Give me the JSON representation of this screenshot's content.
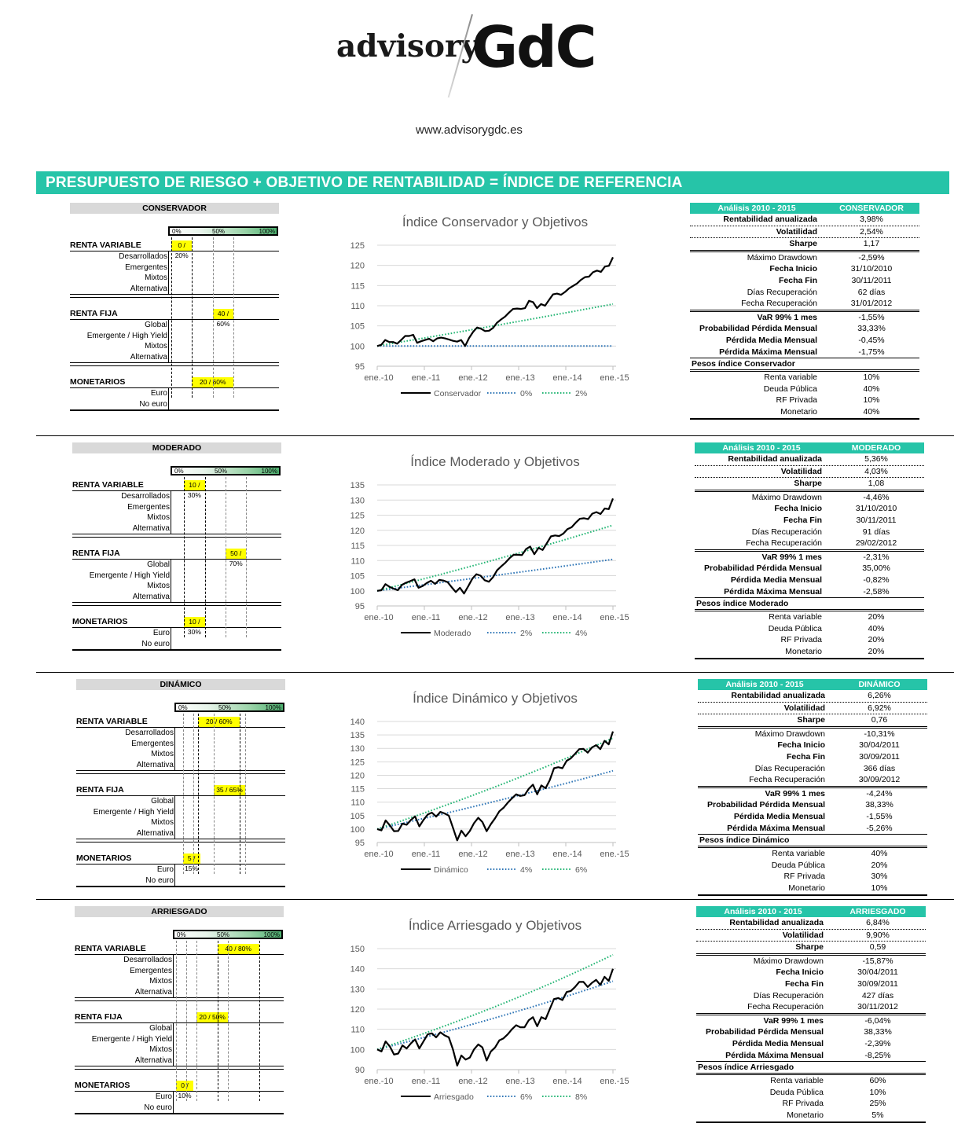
{
  "header": {
    "logo_left": "advisory",
    "logo_right": "GdC",
    "url": "www.advisorygdc.es",
    "banner": "PRESUPUESTO DE RIESGO + OBJETIVO DE RENTABILIDAD = ÍNDICE DE REFERENCIA"
  },
  "colors": {
    "accent": "#26c4a8",
    "highlight": "#ffff00",
    "header_gray": "#d9d9d9",
    "index_line": "#000000",
    "target_low": "#2e75b6",
    "target_high": "#22b573"
  },
  "scale_labels": [
    "0%",
    "50%",
    "100%"
  ],
  "alloc_labels": {
    "renta_variable": "RENTA VARIABLE",
    "rv_items": [
      "Desarrollados",
      "Emergentes",
      "Mixtos",
      "Alternativa"
    ],
    "renta_fija": "RENTA FIJA",
    "rf_items": [
      "Global",
      "Emergente / High Yield",
      "Mixtos",
      "Alternativa"
    ],
    "monetarios": "MONETARIOS",
    "mon_items": [
      "Euro",
      "No euro"
    ]
  },
  "stats_labels": {
    "header_left": "Análisis 2010 - 2015",
    "rentabilidad": "Rentabilidad anualizada",
    "volatilidad": "Volatilidad",
    "sharpe": "Sharpe",
    "max_dd": "Máximo Drawdown",
    "fecha_inicio": "Fecha Inicio",
    "fecha_fin": "Fecha Fin",
    "dias_rec": "Días Recuperación",
    "fecha_rec": "Fecha Recuperación",
    "var": "VaR 99% 1 mes",
    "prob_perdida": "Probabilidad Pérdida Mensual",
    "perdida_media": "Pérdida Media Mensual",
    "perdida_max": "Pérdida Máxima Mensual",
    "w_rv": "Renta variable",
    "w_deuda": "Deuda Pública",
    "w_rfp": "RF Privada",
    "w_mon": "Monetario"
  },
  "profiles": [
    {
      "name": "CONSERVADOR",
      "alloc": {
        "renta_variable": {
          "label": "0 / 20%",
          "min": 0,
          "max": 20
        },
        "renta_fija": {
          "label": "40 / 60%",
          "min": 40,
          "max": 60
        },
        "monetarios": {
          "label": "20 / 60%",
          "min": 20,
          "max": 60
        }
      },
      "stats": {
        "rentabilidad": "3,98%",
        "volatilidad": "2,54%",
        "sharpe": "1,17",
        "max_dd": "-2,59%",
        "fecha_inicio": "31/10/2010",
        "fecha_fin": "30/11/2011",
        "dias_rec": "62 días",
        "fecha_rec": "31/01/2012",
        "var": "-1,55%",
        "prob_perdida": "33,33%",
        "perdida_media": "-0,45%",
        "perdida_max": "-1,75%",
        "pesos_title": "Pesos índice Conservador",
        "w_rv": "10%",
        "w_deuda": "40%",
        "w_rfp": "10%",
        "w_mon": "40%"
      }
    },
    {
      "name": "MODERADO",
      "alloc": {
        "renta_variable": {
          "label": "10 / 30%",
          "min": 10,
          "max": 30
        },
        "renta_fija": {
          "label": "50 / 70%",
          "min": 50,
          "max": 70
        },
        "monetarios": {
          "label": "10 / 30%",
          "min": 10,
          "max": 30
        }
      },
      "stats": {
        "rentabilidad": "5,36%",
        "volatilidad": "4,03%",
        "sharpe": "1,08",
        "max_dd": "-4,46%",
        "fecha_inicio": "31/10/2010",
        "fecha_fin": "30/11/2011",
        "dias_rec": "91 días",
        "fecha_rec": "29/02/2012",
        "var": "-2,31%",
        "prob_perdida": "35,00%",
        "perdida_media": "-0,82%",
        "perdida_max": "-2,58%",
        "pesos_title": "Pesos índice Moderado",
        "w_rv": "20%",
        "w_deuda": "40%",
        "w_rfp": "20%",
        "w_mon": "20%"
      }
    },
    {
      "name": "DINÁMICO",
      "alloc": {
        "renta_variable": {
          "label": "20 / 60%",
          "min": 20,
          "max": 60
        },
        "renta_fija": {
          "label": "35 / 65%",
          "min": 35,
          "max": 65
        },
        "monetarios": {
          "label": "5 / 15%",
          "min": 5,
          "max": 15
        }
      },
      "stats": {
        "rentabilidad": "6,26%",
        "volatilidad": "6,92%",
        "sharpe": "0,76",
        "max_dd": "-10,31%",
        "fecha_inicio": "30/04/2011",
        "fecha_fin": "30/09/2011",
        "dias_rec": "366 días",
        "fecha_rec": "30/09/2012",
        "var": "-4,24%",
        "prob_perdida": "38,33%",
        "perdida_media": "-1,55%",
        "perdida_max": "-5,26%",
        "pesos_title": "Pesos índice Dinámico",
        "w_rv": "40%",
        "w_deuda": "20%",
        "w_rfp": "30%",
        "w_mon": "10%"
      }
    },
    {
      "name": "ARRIESGADO",
      "alloc": {
        "renta_variable": {
          "label": "40 / 80%",
          "min": 40,
          "max": 80
        },
        "renta_fija": {
          "label": "20 / 50%",
          "min": 20,
          "max": 50
        },
        "monetarios": {
          "label": "0 / 10%",
          "min": 0,
          "max": 10
        }
      },
      "stats": {
        "rentabilidad": "6,84%",
        "volatilidad": "9,90%",
        "sharpe": "0,59",
        "max_dd": "-15,87%",
        "fecha_inicio": "30/04/2011",
        "fecha_fin": "30/09/2011",
        "dias_rec": "427 días",
        "fecha_rec": "30/11/2012",
        "var": "-6,04%",
        "prob_perdida": "38,33%",
        "perdida_media": "-2,39%",
        "perdida_max": "-8,25%",
        "pesos_title": "Pesos índice Arriesgado",
        "w_rv": "60%",
        "w_deuda": "10%",
        "w_rfp": "25%",
        "w_mon": "5%"
      }
    }
  ],
  "chart_data": [
    {
      "type": "line",
      "title": "Índice Conservador y Objetivos",
      "x": [
        "ene.-10",
        "ene.-11",
        "ene.-12",
        "ene.-13",
        "ene.-14",
        "ene.-15"
      ],
      "ylim": [
        95,
        125
      ],
      "yticks": [
        95,
        100,
        105,
        110,
        115,
        120,
        125
      ],
      "grid": true,
      "legend": "bottom",
      "series": [
        {
          "name": "Conservador",
          "style": "solid",
          "color": "#000000",
          "values": [
            100,
            100.3,
            101.5,
            101,
            101,
            100.6,
            101.5,
            102.5,
            102.5,
            102.8,
            100.8,
            101.2,
            101.5,
            101.8,
            101.2,
            101.9,
            102.1,
            101.9,
            101.6,
            101.3,
            101.1,
            101.5,
            100,
            102,
            103.5,
            104.6,
            104.3,
            103.7,
            103.8,
            104.5,
            105.8,
            106.6,
            107.3,
            108.3,
            109.2,
            109.3,
            109.2,
            109.4,
            111.2,
            110.9,
            109.4,
            110.4,
            110,
            111.4,
            112.8,
            113,
            112.7,
            113.4,
            114.3,
            114.9,
            115.5,
            116.4,
            117.1,
            117.2,
            118.3,
            118.7,
            118.4,
            119.7,
            119.9,
            122
          ]
        },
        {
          "name": "0%",
          "style": "dotted",
          "color": "#2e75b6",
          "rate": 0
        },
        {
          "name": "2%",
          "style": "dotted",
          "color": "#22b573",
          "rate": 2
        }
      ]
    },
    {
      "type": "line",
      "title": "Índice Moderado y Objetivos",
      "x": [
        "ene.-10",
        "ene.-11",
        "ene.-12",
        "ene.-13",
        "ene.-14",
        "ene.-15"
      ],
      "ylim": [
        95,
        135
      ],
      "yticks": [
        95,
        100,
        105,
        110,
        115,
        120,
        125,
        130,
        135
      ],
      "grid": true,
      "legend": "bottom",
      "series": [
        {
          "name": "Moderado",
          "style": "solid",
          "color": "#000000",
          "values": [
            100,
            100.2,
            102.2,
            101.3,
            100.7,
            100.2,
            102,
            102.7,
            103.2,
            103.8,
            101,
            101.6,
            102.6,
            103.3,
            102.3,
            103.6,
            103.4,
            102.9,
            101.2,
            99.6,
            101,
            99.1,
            101.5,
            104,
            105.5,
            105,
            103.5,
            103,
            104.5,
            106.8,
            108.1,
            109.3,
            110.8,
            111.9,
            111.9,
            111.8,
            113.8,
            114.6,
            112.1,
            114.2,
            113.5,
            115.7,
            118,
            118.3,
            118.1,
            118.9,
            120.4,
            121,
            122.5,
            123.8,
            124,
            123.7,
            125.5,
            126,
            125.4,
            127.2,
            127,
            130.5
          ]
        },
        {
          "name": "2%",
          "style": "dotted",
          "color": "#2e75b6",
          "rate": 2
        },
        {
          "name": "4%",
          "style": "dotted",
          "color": "#22b573",
          "rate": 4
        }
      ]
    },
    {
      "type": "line",
      "title": "Índice Dinámico y Objetivos",
      "x": [
        "ene.-10",
        "ene.-11",
        "ene.-12",
        "ene.-13",
        "ene.-14",
        "ene.-15"
      ],
      "ylim": [
        95,
        140
      ],
      "yticks": [
        95,
        100,
        105,
        110,
        115,
        120,
        125,
        130,
        135,
        140
      ],
      "grid": true,
      "legend": "bottom",
      "series": [
        {
          "name": "Dinámico",
          "style": "solid",
          "color": "#000000",
          "values": [
            100,
            99.5,
            103.2,
            101.4,
            99.2,
            99.3,
            102,
            101.6,
            103.4,
            104.7,
            101,
            103.4,
            105.4,
            106.1,
            104.6,
            106.4,
            105.8,
            105,
            100.5,
            95.8,
            99.4,
            97.3,
            99.3,
            102.2,
            104.2,
            102.6,
            99.2,
            101.8,
            104,
            106.6,
            107.9,
            109.8,
            111.4,
            112.9,
            112.3,
            112.6,
            115,
            116.5,
            112.9,
            116.2,
            115.2,
            118.2,
            122.6,
            123,
            122.6,
            125.4,
            126.3,
            128,
            129.7,
            129.8,
            128.4,
            130.3,
            131.2,
            129.7,
            132.8,
            131.5,
            136.3
          ]
        },
        {
          "name": "4%",
          "style": "dotted",
          "color": "#2e75b6",
          "rate": 4
        },
        {
          "name": "6%",
          "style": "dotted",
          "color": "#22b573",
          "rate": 6
        }
      ]
    },
    {
      "type": "line",
      "title": "Índice Arriesgado y Objetivos",
      "x": [
        "ene.-10",
        "ene.-11",
        "ene.-12",
        "ene.-13",
        "ene.-14",
        "ene.-15"
      ],
      "ylim": [
        90,
        150
      ],
      "yticks": [
        90,
        100,
        110,
        120,
        130,
        140,
        150
      ],
      "grid": true,
      "legend": "bottom",
      "series": [
        {
          "name": "Arriesgado",
          "style": "solid",
          "color": "#000000",
          "values": [
            100,
            99,
            104,
            101.5,
            97.5,
            98,
            102,
            100.5,
            103,
            105,
            100.5,
            104,
            107.5,
            108,
            106,
            108.5,
            107,
            106,
            100,
            92,
            97,
            95,
            96,
            100,
            102.5,
            101,
            94.5,
            99,
            101,
            104.5,
            105.5,
            107.5,
            110,
            112,
            111,
            111,
            114.5,
            116,
            111.5,
            116,
            115,
            120,
            125,
            125.5,
            124.5,
            128.5,
            129,
            131,
            133.5,
            133.5,
            131,
            133,
            134.5,
            132,
            136,
            134,
            140
          ]
        },
        {
          "name": "6%",
          "style": "dotted",
          "color": "#2e75b6",
          "rate": 6
        },
        {
          "name": "8%",
          "style": "dotted",
          "color": "#22b573",
          "rate": 8
        }
      ]
    }
  ]
}
